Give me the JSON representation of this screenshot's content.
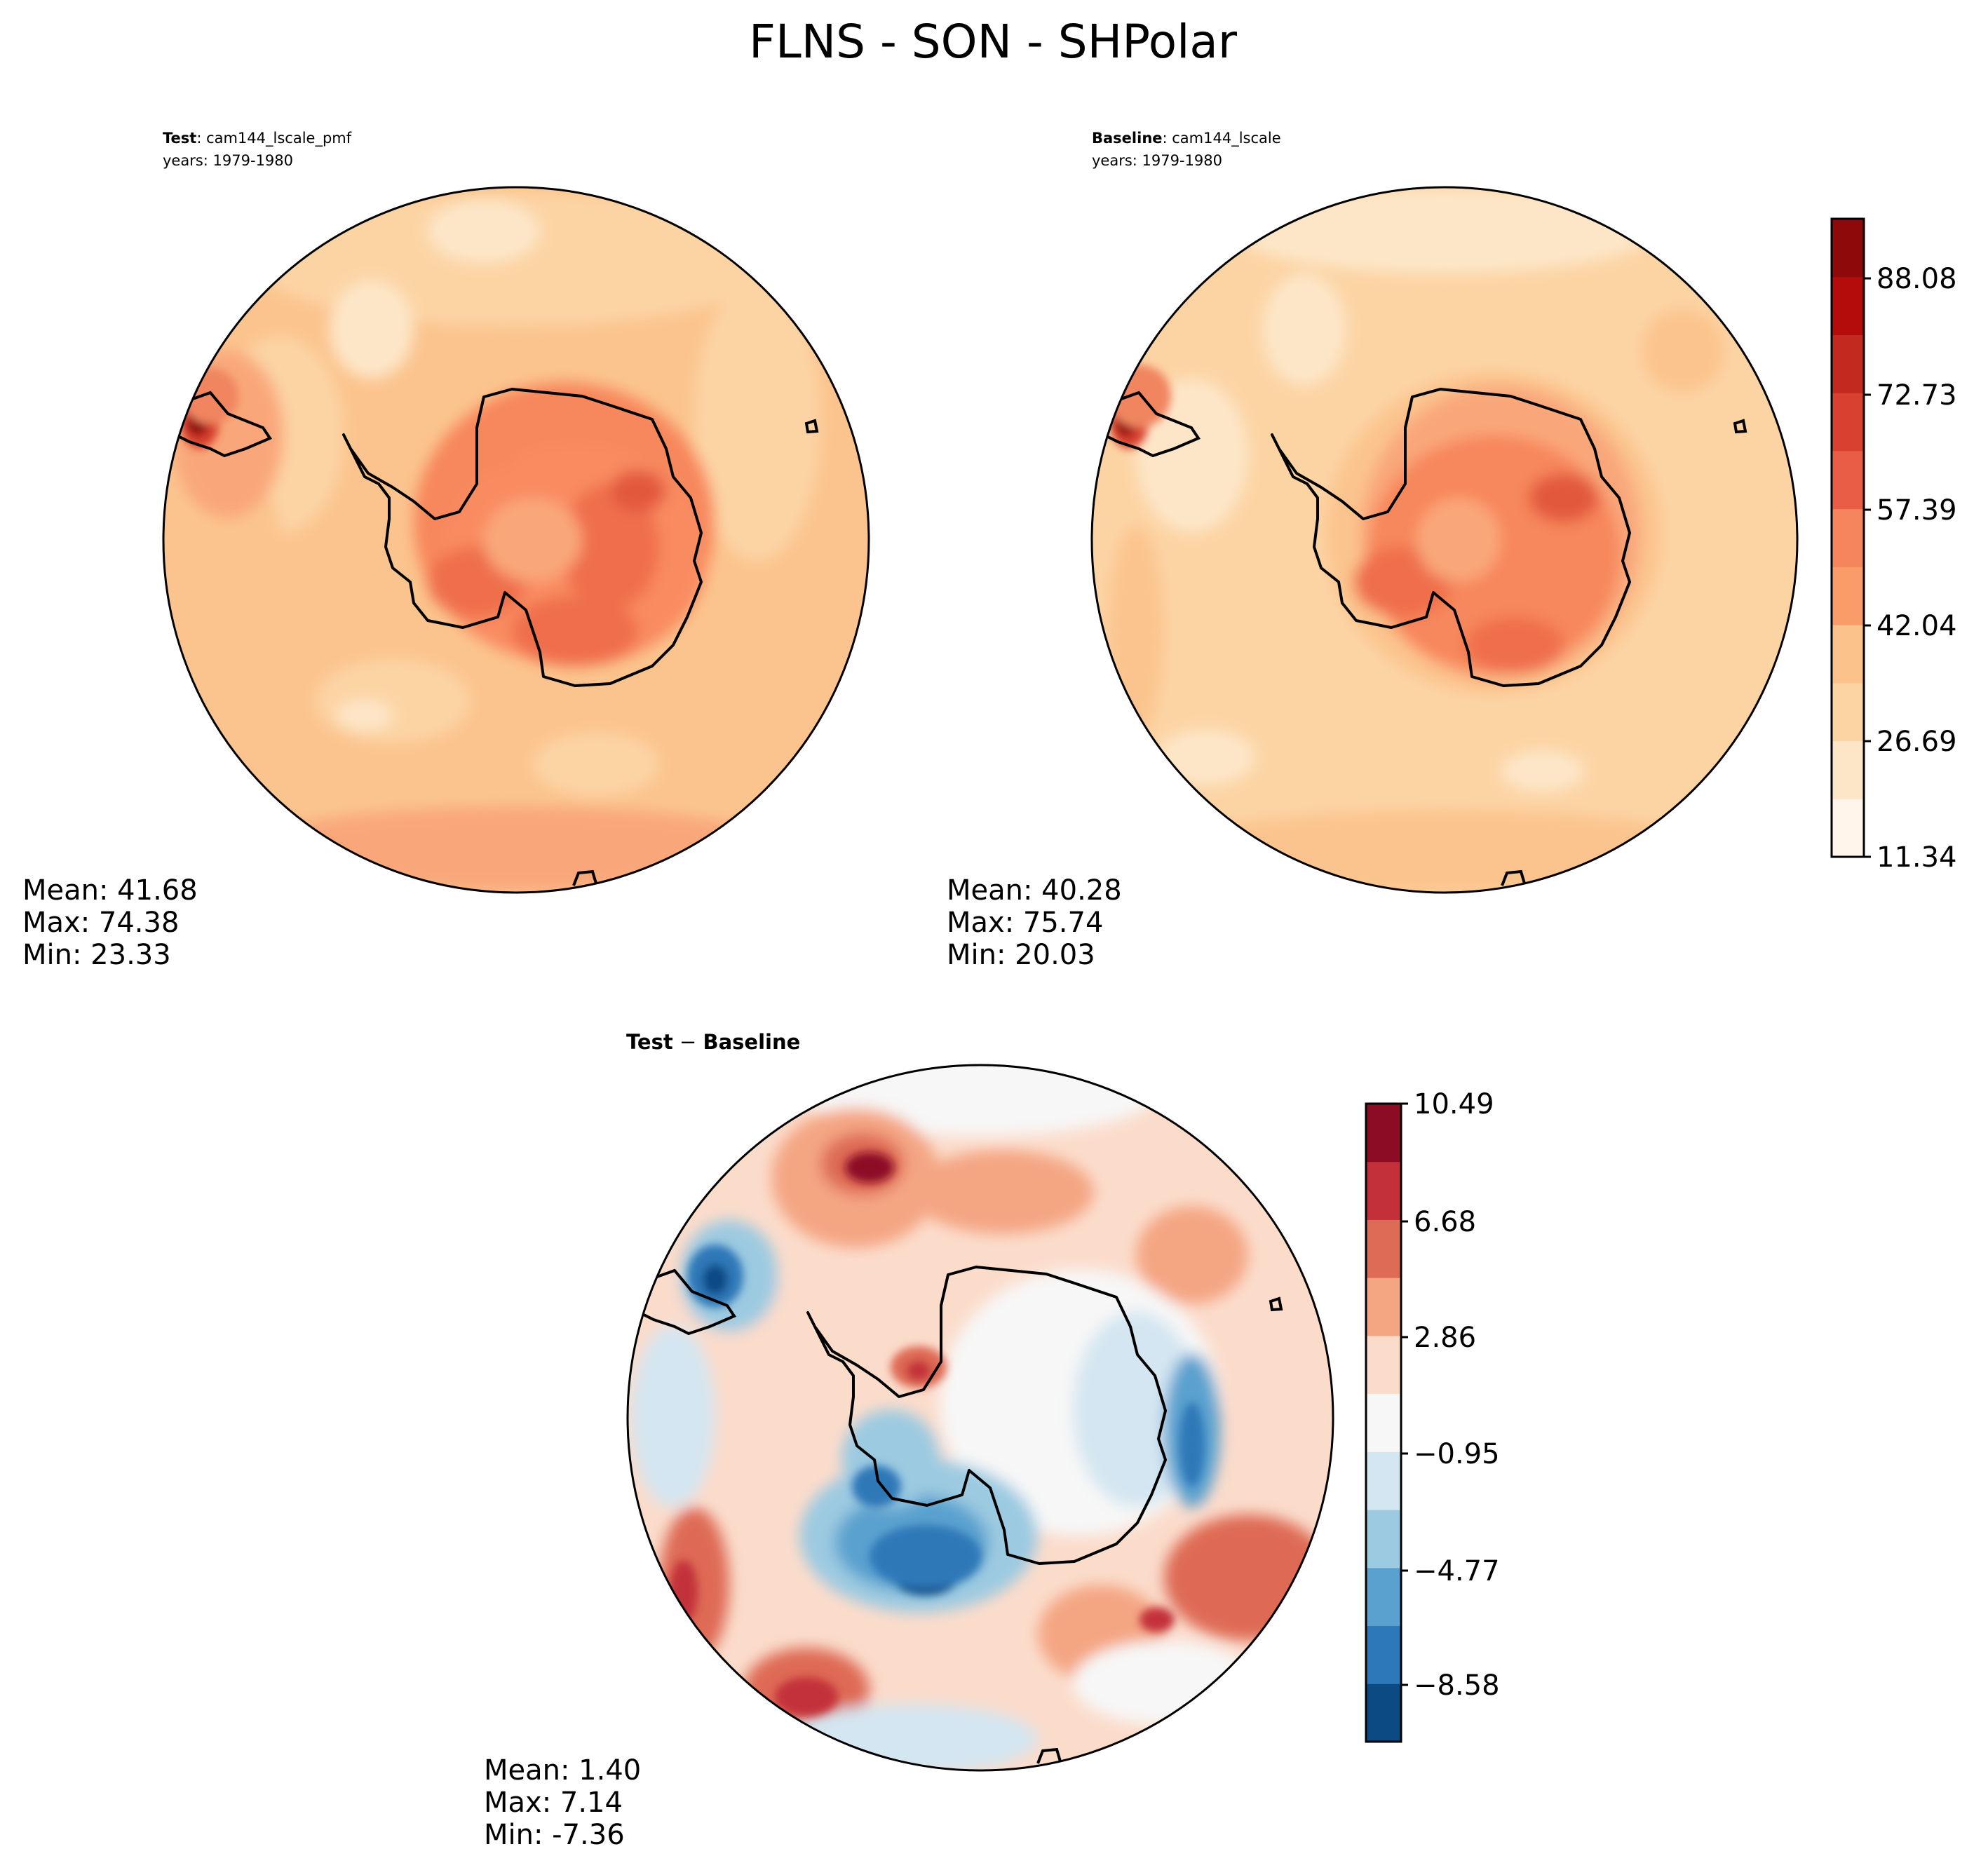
{
  "figure": {
    "title": "FLNS - SON - SHPolar"
  },
  "chart_data": [
    {
      "type": "heatmap",
      "panel": "test",
      "label_bold": "Test",
      "label_rest": ": cam144_lscale_pmf",
      "years": "years: 1979-1980",
      "projection": "south polar stereographic",
      "stats": {
        "mean": "Mean: 41.68",
        "max": "Max: 74.38",
        "min": "Min: 23.33"
      },
      "colormap": "OrRd-like sequential",
      "levels": [
        11.34,
        18.98,
        26.69,
        34.37,
        42.04,
        49.72,
        57.39,
        65.06,
        72.73,
        80.41,
        88.08,
        95.75
      ]
    },
    {
      "type": "heatmap",
      "panel": "baseline",
      "label_bold": "Baseline",
      "label_rest": ": cam144_lscale",
      "years": "years: 1979-1980",
      "projection": "south polar stereographic",
      "stats": {
        "mean": "Mean: 40.28",
        "max": "Max: 75.74",
        "min": "Min: 20.03"
      },
      "colorbar": {
        "ticks": [
          "88.08",
          "72.73",
          "57.39",
          "42.04",
          "26.69",
          "11.34"
        ],
        "colors": [
          "#fff5eb",
          "#fde5c8",
          "#fcd3a2",
          "#fbc28c",
          "#fa9c6a",
          "#f5855d",
          "#e95d47",
          "#d8412f",
          "#c32a1f",
          "#b40b0b",
          "#8e0a0a"
        ]
      }
    },
    {
      "type": "heatmap",
      "panel": "difference",
      "label_bold": "Test",
      "label_minus": " − ",
      "label_bold2": "Baseline",
      "projection": "south polar stereographic",
      "stats": {
        "mean": "Mean:  1.40",
        "max": "Max:  7.14",
        "min": "Min: -7.36"
      },
      "colorbar": {
        "ticks": [
          "10.49",
          "6.68",
          "2.86",
          "−0.95",
          "−4.77",
          "−8.58"
        ],
        "colors": [
          "#0c4a83",
          "#2d78b8",
          "#5aa1cf",
          "#9ccae1",
          "#d4e6f1",
          "#f7f7f7",
          "#fbdccb",
          "#f4a683",
          "#de6b55",
          "#c3303a",
          "#8d0c25"
        ]
      }
    }
  ]
}
